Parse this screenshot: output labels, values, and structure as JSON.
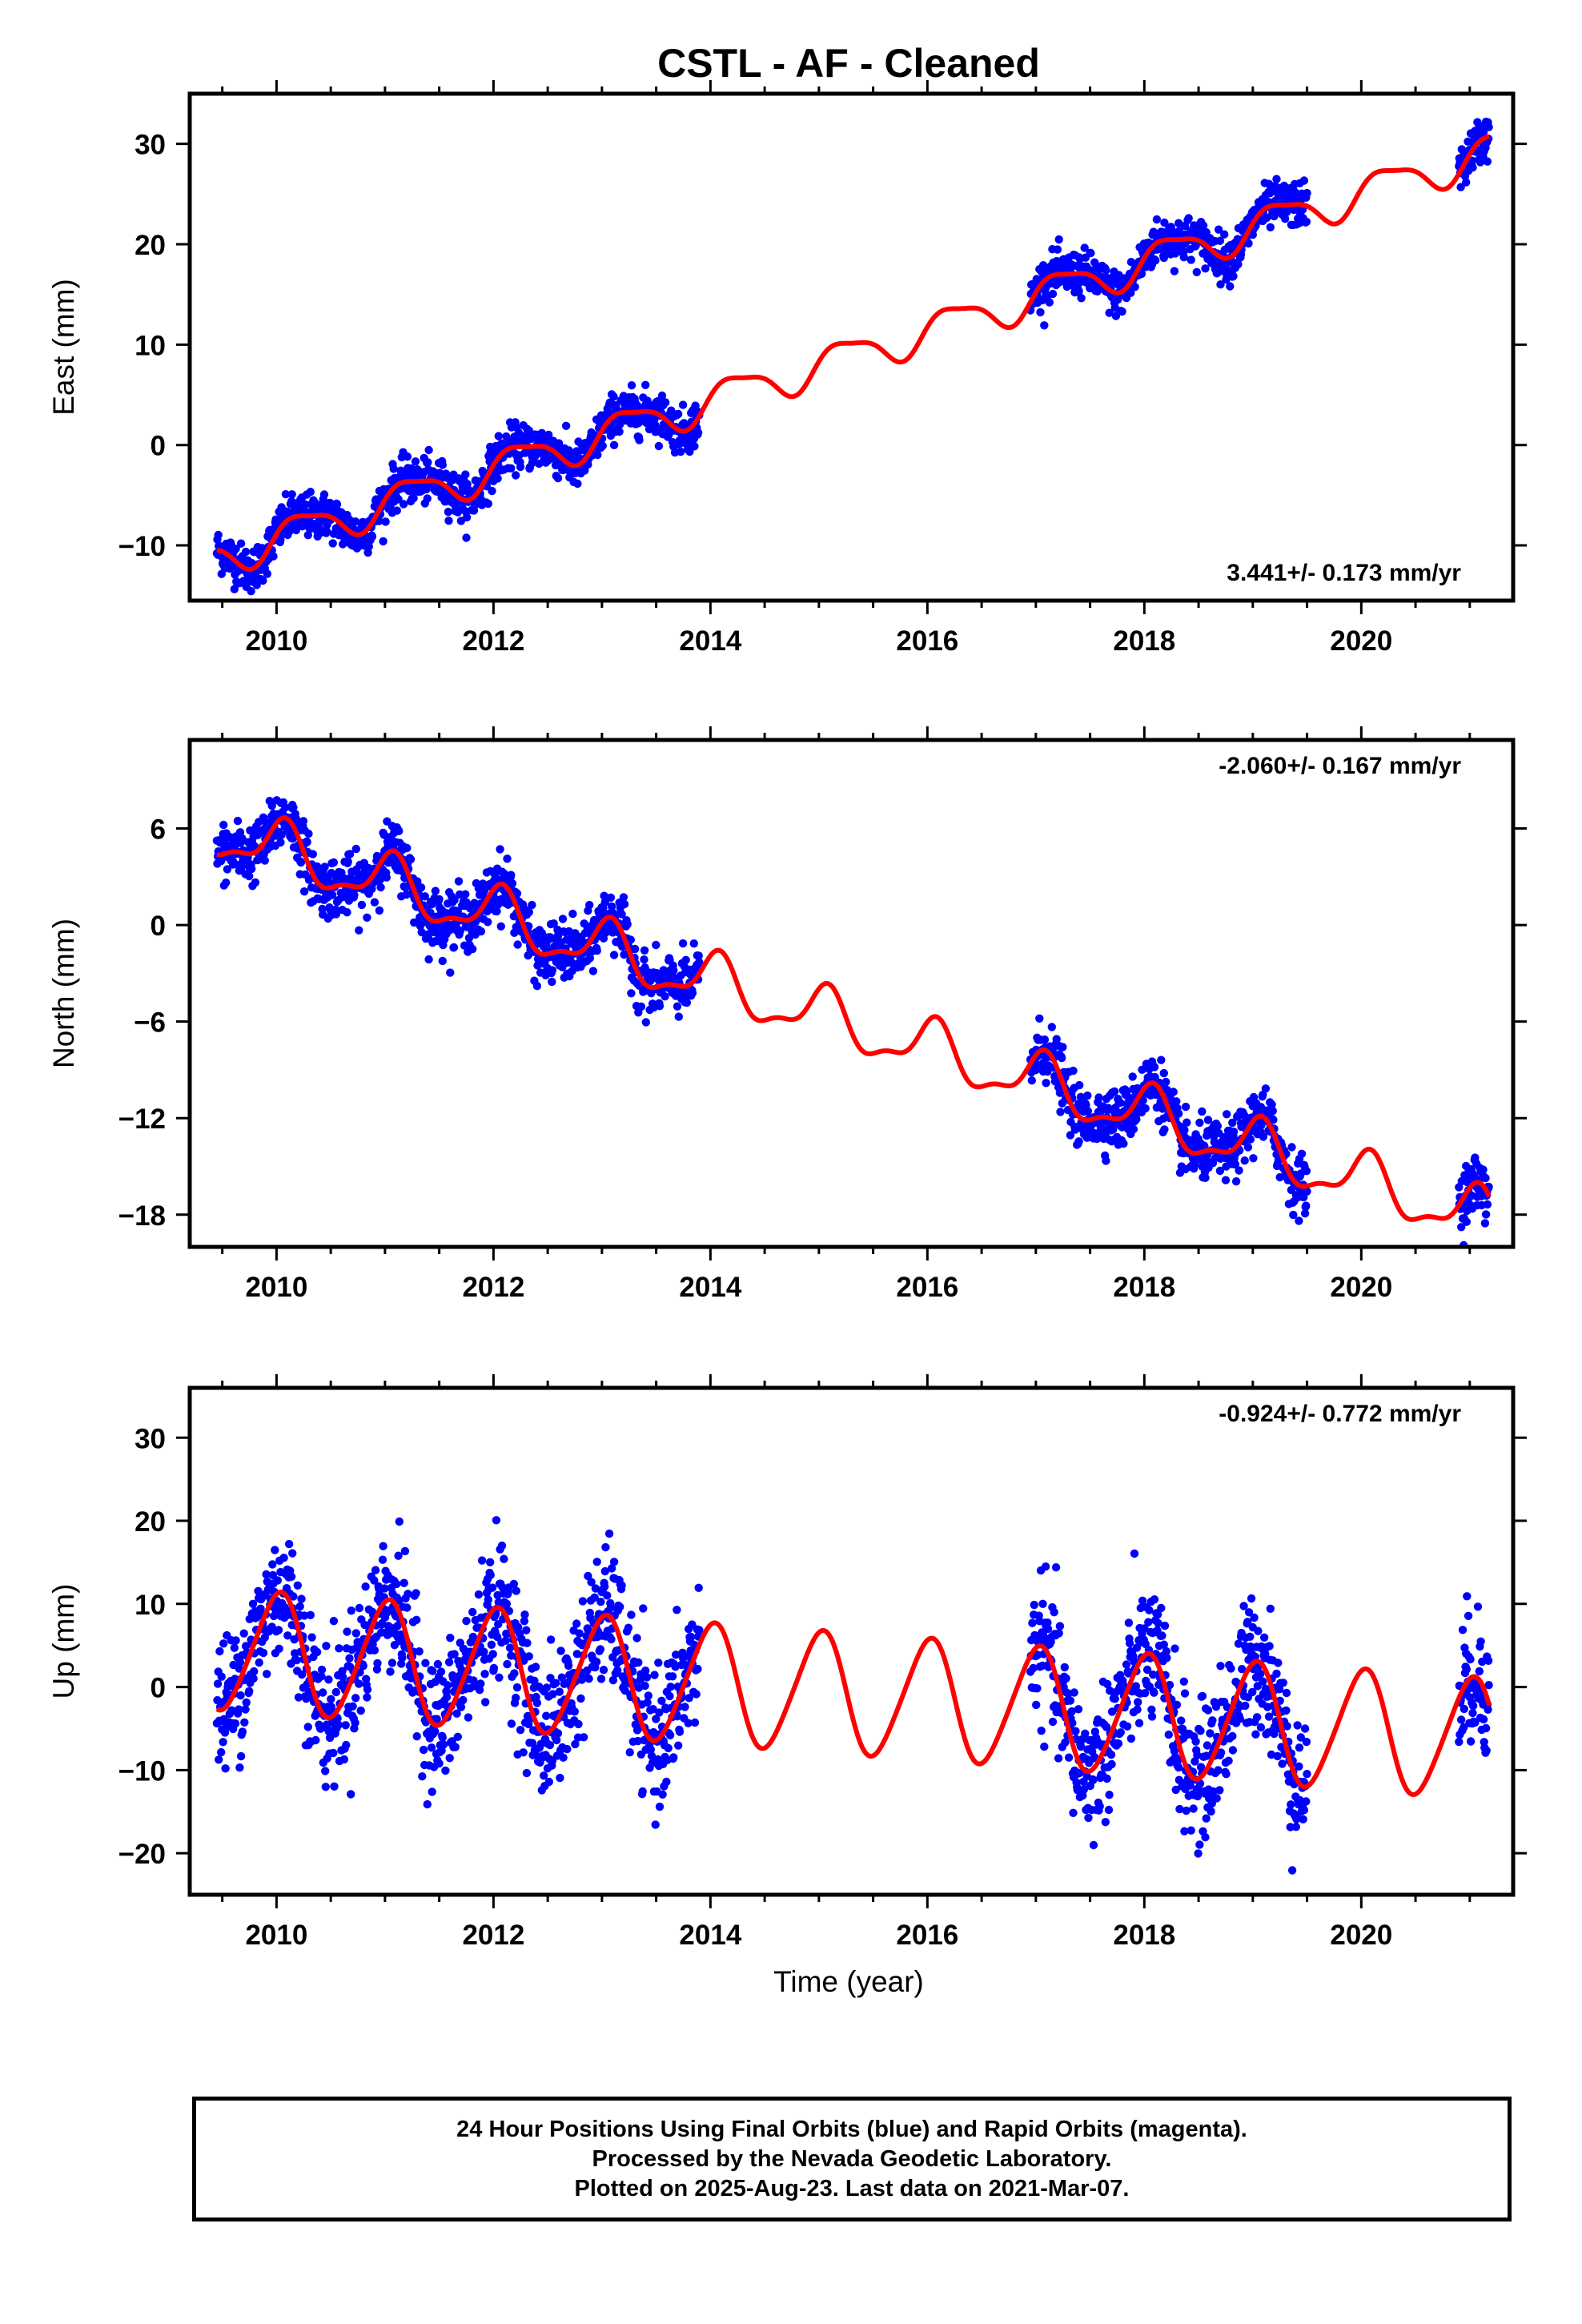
{
  "page": {
    "title": "CSTL  - AF - Cleaned",
    "xlabel": "Time (year)",
    "footer": [
      "24 Hour Positions Using Final Orbits (blue) and Rapid Orbits (magenta).",
      "Processed by the Nevada Geodetic Laboratory.",
      "Plotted on 2025-Aug-23. Last data on 2021-Mar-07."
    ]
  },
  "colors": {
    "data_points": "#0000ff",
    "model_fit": "#ff0000",
    "frame": "#000000"
  },
  "chart_data": [
    {
      "type": "scatter",
      "name": "east",
      "ylabel": "East (mm)",
      "rate_label": "3.441+/- 0.173 mm/yr",
      "rate_position": "bottom-right",
      "xlim": [
        2009.2,
        2021.4
      ],
      "ylim": [
        -15.5,
        35
      ],
      "xticks": [
        2010,
        2012,
        2014,
        2016,
        2018,
        2020
      ],
      "yticks": [
        -10,
        0,
        10,
        20,
        30
      ],
      "xtick_labels": [
        "2010",
        "2012",
        "2014",
        "2016",
        "2018",
        "2020"
      ],
      "ytick_labels": [
        "−10",
        "0",
        "10",
        "20",
        "30"
      ],
      "grid": false,
      "series": [
        {
          "kind": "points",
          "color": "#0000ff",
          "segments": [
            [
              2009.45,
              2013.9
            ],
            [
              2016.95,
              2019.5
            ],
            [
              2020.9,
              2021.18
            ]
          ],
          "trend": {
            "ref_year": 2009.45,
            "offset": -11.2,
            "rate": 3.441
          },
          "seasonal": {
            "amp_annual": 1.8,
            "phase_annual": 0.0,
            "amp_semi": 0.5,
            "phase_semi": 1.0
          },
          "scatter_sd": 1.1
        },
        {
          "kind": "line",
          "color": "#ff0000",
          "x_range": [
            2009.45,
            2021.18
          ],
          "trend": {
            "ref_year": 2009.45,
            "offset": -11.2,
            "rate": 3.441
          },
          "seasonal": {
            "amp_annual": 1.8,
            "phase_annual": 0.0,
            "amp_semi": 0.5,
            "phase_semi": 1.0
          }
        }
      ]
    },
    {
      "type": "scatter",
      "name": "north",
      "ylabel": "North (mm)",
      "rate_label": "-2.060+/- 0.167 mm/yr",
      "rate_position": "top-right",
      "xlim": [
        2009.2,
        2021.4
      ],
      "ylim": [
        -20,
        11.5
      ],
      "xticks": [
        2010,
        2012,
        2014,
        2016,
        2018,
        2020
      ],
      "yticks": [
        -18,
        -12,
        -6,
        0,
        6
      ],
      "xtick_labels": [
        "2010",
        "2012",
        "2014",
        "2016",
        "2018",
        "2020"
      ],
      "ytick_labels": [
        "−18",
        "−12",
        "−6",
        "0",
        "6"
      ],
      "grid": false,
      "series": [
        {
          "kind": "points",
          "color": "#0000ff",
          "segments": [
            [
              2009.45,
              2013.9
            ],
            [
              2016.95,
              2019.5
            ],
            [
              2020.9,
              2021.18
            ]
          ],
          "trend": {
            "ref_year": 2009.45,
            "offset": 5.8,
            "rate": -2.06
          },
          "seasonal": {
            "amp_annual": 1.6,
            "phase_annual": 1.2,
            "amp_semi": 0.6,
            "phase_semi": 0.3
          },
          "scatter_sd": 0.9
        },
        {
          "kind": "line",
          "color": "#ff0000",
          "x_range": [
            2009.45,
            2021.18
          ],
          "trend": {
            "ref_year": 2009.45,
            "offset": 5.8,
            "rate": -2.06
          },
          "seasonal": {
            "amp_annual": 1.6,
            "phase_annual": 1.2,
            "amp_semi": 0.6,
            "phase_semi": 0.3
          }
        }
      ]
    },
    {
      "type": "scatter",
      "name": "up",
      "ylabel": "Up (mm)",
      "rate_label": "-0.924+/- 0.772 mm/yr",
      "rate_position": "top-right",
      "xlim": [
        2009.2,
        2021.4
      ],
      "ylim": [
        -25,
        36
      ],
      "xticks": [
        2010,
        2012,
        2014,
        2016,
        2018,
        2020
      ],
      "yticks": [
        -20,
        -10,
        0,
        10,
        20,
        30
      ],
      "xtick_labels": [
        "2010",
        "2012",
        "2014",
        "2016",
        "2018",
        "2020"
      ],
      "ytick_labels": [
        "−20",
        "−10",
        "0",
        "10",
        "20",
        "30"
      ],
      "grid": false,
      "series": [
        {
          "kind": "points",
          "color": "#0000ff",
          "segments": [
            [
              2009.45,
              2013.9
            ],
            [
              2016.95,
              2019.5
            ],
            [
              2020.9,
              2021.18
            ]
          ],
          "trend": {
            "ref_year": 2009.45,
            "offset": 4.5,
            "rate": -0.924
          },
          "seasonal": {
            "amp_annual": 7.2,
            "phase_annual": 1.5,
            "amp_semi": 0.8,
            "phase_semi": 0.0
          },
          "scatter_sd": 4.0
        },
        {
          "kind": "line",
          "color": "#ff0000",
          "x_range": [
            2009.45,
            2021.18
          ],
          "trend": {
            "ref_year": 2009.45,
            "offset": 4.5,
            "rate": -0.924
          },
          "seasonal": {
            "amp_annual": 7.2,
            "phase_annual": 1.5,
            "amp_semi": 0.8,
            "phase_semi": 0.0
          }
        }
      ]
    }
  ]
}
